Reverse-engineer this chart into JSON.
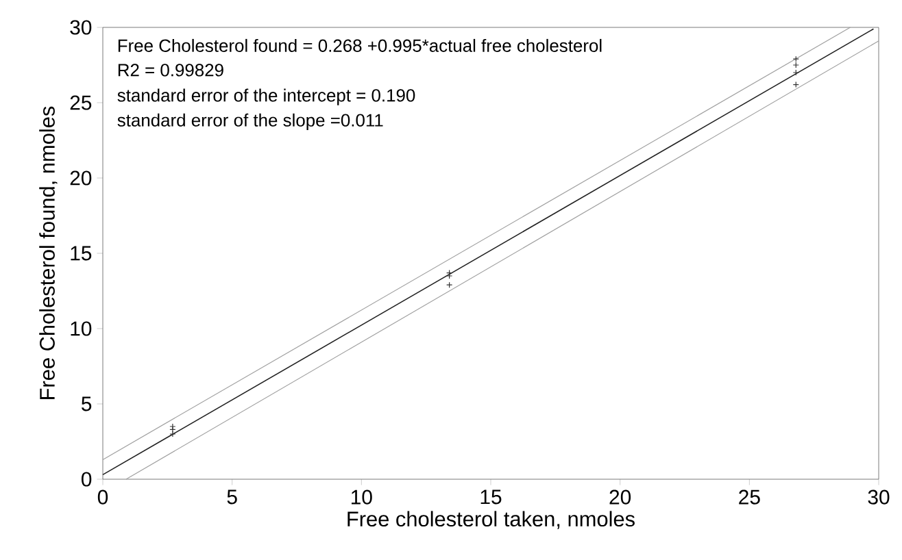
{
  "chart_data": {
    "type": "scatter",
    "xlabel": "Free cholesterol taken, nmoles",
    "ylabel": "Free Cholesterol found, nmoles",
    "annotations": [
      "Free Cholesterol found = 0.268 +0.995*actual free cholesterol",
      "R2 = 0.99829",
      "standard error of the intercept = 0.190",
      "standard error of the slope =0.011"
    ],
    "xlim": [
      0,
      30
    ],
    "ylim": [
      0,
      30
    ],
    "xticks": [
      0,
      5,
      10,
      15,
      20,
      25,
      30
    ],
    "yticks": [
      0,
      5,
      10,
      15,
      20,
      25,
      30
    ],
    "series": [
      {
        "marker": "cross",
        "color": "#333333",
        "x": [
          2.7,
          2.7,
          2.7,
          13.4,
          13.4,
          13.4,
          26.8,
          26.8,
          26.8,
          26.8
        ],
        "values": [
          3.0,
          3.3,
          3.5,
          12.9,
          13.5,
          13.7,
          26.2,
          27.0,
          27.5,
          27.9
        ]
      },
      {
        "type": "line",
        "marker": "none",
        "color": "#222222",
        "x": [
          0,
          29.8
        ],
        "values": [
          0.3,
          29.9
        ]
      },
      {
        "type": "line",
        "marker": "none",
        "color": "#a0a0a0",
        "x": [
          0,
          28.9
        ],
        "values": [
          1.3,
          30
        ]
      },
      {
        "type": "line",
        "marker": "none",
        "color": "#a0a0a0",
        "x": [
          0.9,
          30
        ],
        "values": [
          0,
          29.1
        ]
      }
    ]
  }
}
